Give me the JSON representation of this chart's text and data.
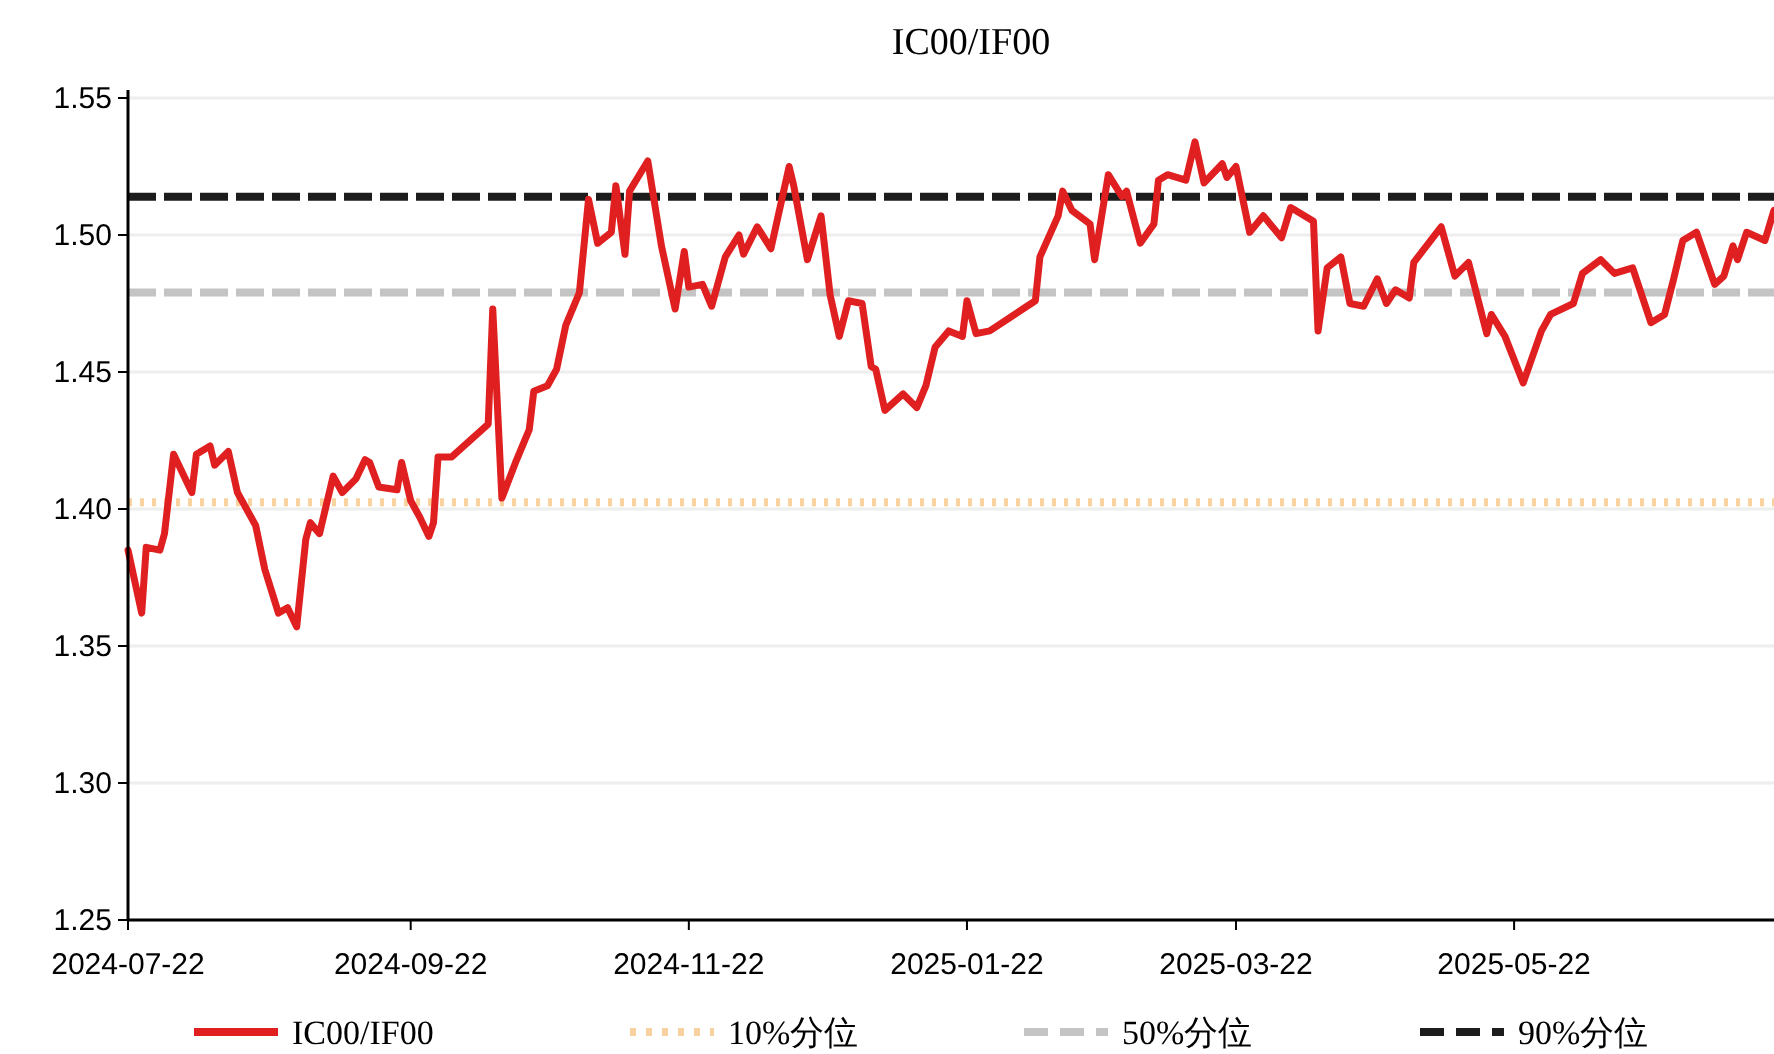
{
  "chart_data": {
    "type": "line",
    "title": "IC00/IF00",
    "x": [
      "2024-07-22",
      "2024-07-25",
      "2024-07-26",
      "2024-07-29",
      "2024-07-30",
      "2024-08-01",
      "2024-08-05",
      "2024-08-06",
      "2024-08-09",
      "2024-08-10",
      "2024-08-13",
      "2024-08-15",
      "2024-08-17",
      "2024-08-19",
      "2024-08-21",
      "2024-08-24",
      "2024-08-26",
      "2024-08-28",
      "2024-08-30",
      "2024-08-31",
      "2024-09-02",
      "2024-09-05",
      "2024-09-07",
      "2024-09-10",
      "2024-09-12",
      "2024-09-13",
      "2024-09-15",
      "2024-09-19",
      "2024-09-20",
      "2024-09-22",
      "2024-09-24",
      "2024-09-26",
      "2024-09-27",
      "2024-09-28",
      "2024-10-01",
      "2024-10-09",
      "2024-10-10",
      "2024-10-12",
      "2024-10-15",
      "2024-10-18",
      "2024-10-19",
      "2024-10-22",
      "2024-10-24",
      "2024-10-26",
      "2024-10-29",
      "2024-10-31",
      "2024-11-02",
      "2024-11-05",
      "2024-11-06",
      "2024-11-08",
      "2024-11-09",
      "2024-11-13",
      "2024-11-16",
      "2024-11-19",
      "2024-11-21",
      "2024-11-22",
      "2024-11-25",
      "2024-11-27",
      "2024-11-30",
      "2024-12-03",
      "2024-12-04",
      "2024-12-07",
      "2024-12-10",
      "2024-12-14",
      "2024-12-15",
      "2024-12-18",
      "2024-12-21",
      "2024-12-23",
      "2024-12-25",
      "2024-12-27",
      "2024-12-30",
      "2025-01-01",
      "2025-01-02",
      "2025-01-04",
      "2025-01-08",
      "2025-01-11",
      "2025-01-13",
      "2025-01-15",
      "2025-01-18",
      "2025-01-21",
      "2025-01-22",
      "2025-01-24",
      "2025-01-27",
      "2025-02-06",
      "2025-02-07",
      "2025-02-11",
      "2025-02-12",
      "2025-02-14",
      "2025-02-18",
      "2025-02-19",
      "2025-02-22",
      "2025-02-25",
      "2025-02-26",
      "2025-03-01",
      "2025-03-04",
      "2025-03-05",
      "2025-03-07",
      "2025-03-11",
      "2025-03-13",
      "2025-03-15",
      "2025-03-19",
      "2025-03-20",
      "2025-03-22",
      "2025-03-25",
      "2025-03-28",
      "2025-04-01",
      "2025-04-03",
      "2025-04-08",
      "2025-04-09",
      "2025-04-11",
      "2025-04-14",
      "2025-04-16",
      "2025-04-19",
      "2025-04-22",
      "2025-04-24",
      "2025-04-26",
      "2025-04-29",
      "2025-04-30",
      "2025-05-06",
      "2025-05-09",
      "2025-05-12",
      "2025-05-16",
      "2025-05-17",
      "2025-05-20",
      "2025-05-24",
      "2025-05-28",
      "2025-05-30",
      "2025-06-04",
      "2025-06-06",
      "2025-06-10",
      "2025-06-13",
      "2025-06-17",
      "2025-06-21",
      "2025-06-24",
      "2025-06-26",
      "2025-06-28",
      "2025-07-01",
      "2025-07-05",
      "2025-07-07",
      "2025-07-09",
      "2025-07-10",
      "2025-07-12",
      "2025-07-16",
      "2025-07-18"
    ],
    "series": [
      {
        "name": "IC00/IF00",
        "color": "#e02020",
        "values": [
          1.385,
          1.362,
          1.386,
          1.385,
          1.391,
          1.42,
          1.406,
          1.42,
          1.423,
          1.416,
          1.421,
          1.406,
          1.4,
          1.394,
          1.378,
          1.362,
          1.364,
          1.357,
          1.389,
          1.395,
          1.391,
          1.412,
          1.406,
          1.411,
          1.418,
          1.417,
          1.408,
          1.407,
          1.417,
          1.403,
          1.397,
          1.39,
          1.395,
          1.419,
          1.419,
          1.431,
          1.473,
          1.404,
          1.417,
          1.429,
          1.443,
          1.445,
          1.451,
          1.467,
          1.479,
          1.513,
          1.497,
          1.501,
          1.518,
          1.493,
          1.516,
          1.527,
          1.496,
          1.473,
          1.494,
          1.481,
          1.482,
          1.474,
          1.492,
          1.5,
          1.493,
          1.503,
          1.495,
          1.525,
          1.518,
          1.491,
          1.507,
          1.478,
          1.463,
          1.476,
          1.475,
          1.452,
          1.451,
          1.436,
          1.442,
          1.437,
          1.445,
          1.459,
          1.465,
          1.463,
          1.476,
          1.464,
          1.465,
          1.476,
          1.492,
          1.507,
          1.516,
          1.509,
          1.504,
          1.491,
          1.522,
          1.514,
          1.516,
          1.497,
          1.504,
          1.52,
          1.522,
          1.52,
          1.534,
          1.519,
          1.526,
          1.521,
          1.525,
          1.501,
          1.507,
          1.499,
          1.51,
          1.505,
          1.465,
          1.488,
          1.492,
          1.475,
          1.474,
          1.484,
          1.475,
          1.48,
          1.477,
          1.49,
          1.503,
          1.485,
          1.49,
          1.464,
          1.471,
          1.463,
          1.446,
          1.465,
          1.471,
          1.475,
          1.486,
          1.491,
          1.486,
          1.488,
          1.468,
          1.471,
          1.484,
          1.498,
          1.501,
          1.482,
          1.485,
          1.496,
          1.491,
          1.501,
          1.498,
          1.509
        ]
      }
    ],
    "ref_lines": [
      {
        "axis": "y",
        "value": 1.4025,
        "label": "10%分位",
        "color": "#f8d3a0",
        "line_style": "dotted"
      },
      {
        "axis": "y",
        "value": 1.479,
        "label": "50%分位",
        "color": "#c4c4c4",
        "line_style": "dashed"
      },
      {
        "axis": "y",
        "value": 1.514,
        "label": "90%分位",
        "color": "#1c1c1c",
        "line_style": "dashed"
      }
    ],
    "xlim": [
      "2024-07-22",
      "2025-07-18"
    ],
    "xticks": [
      "2024-07-22",
      "2024-09-22",
      "2024-11-22",
      "2025-01-22",
      "2025-03-22",
      "2025-05-22"
    ],
    "ylim": [
      1.25,
      1.55
    ],
    "yticks": [
      {
        "value": 1.25,
        "label": "1.25"
      },
      {
        "value": 1.3,
        "label": "1.30"
      },
      {
        "value": 1.35,
        "label": "1.35"
      },
      {
        "value": 1.4,
        "label": "1.40"
      },
      {
        "value": 1.45,
        "label": "1.45"
      },
      {
        "value": 1.5,
        "label": "1.50"
      },
      {
        "value": 1.55,
        "label": "1.55"
      }
    ],
    "grid": "y",
    "legend": "bottom",
    "marker": "none",
    "line_style": "solid"
  }
}
